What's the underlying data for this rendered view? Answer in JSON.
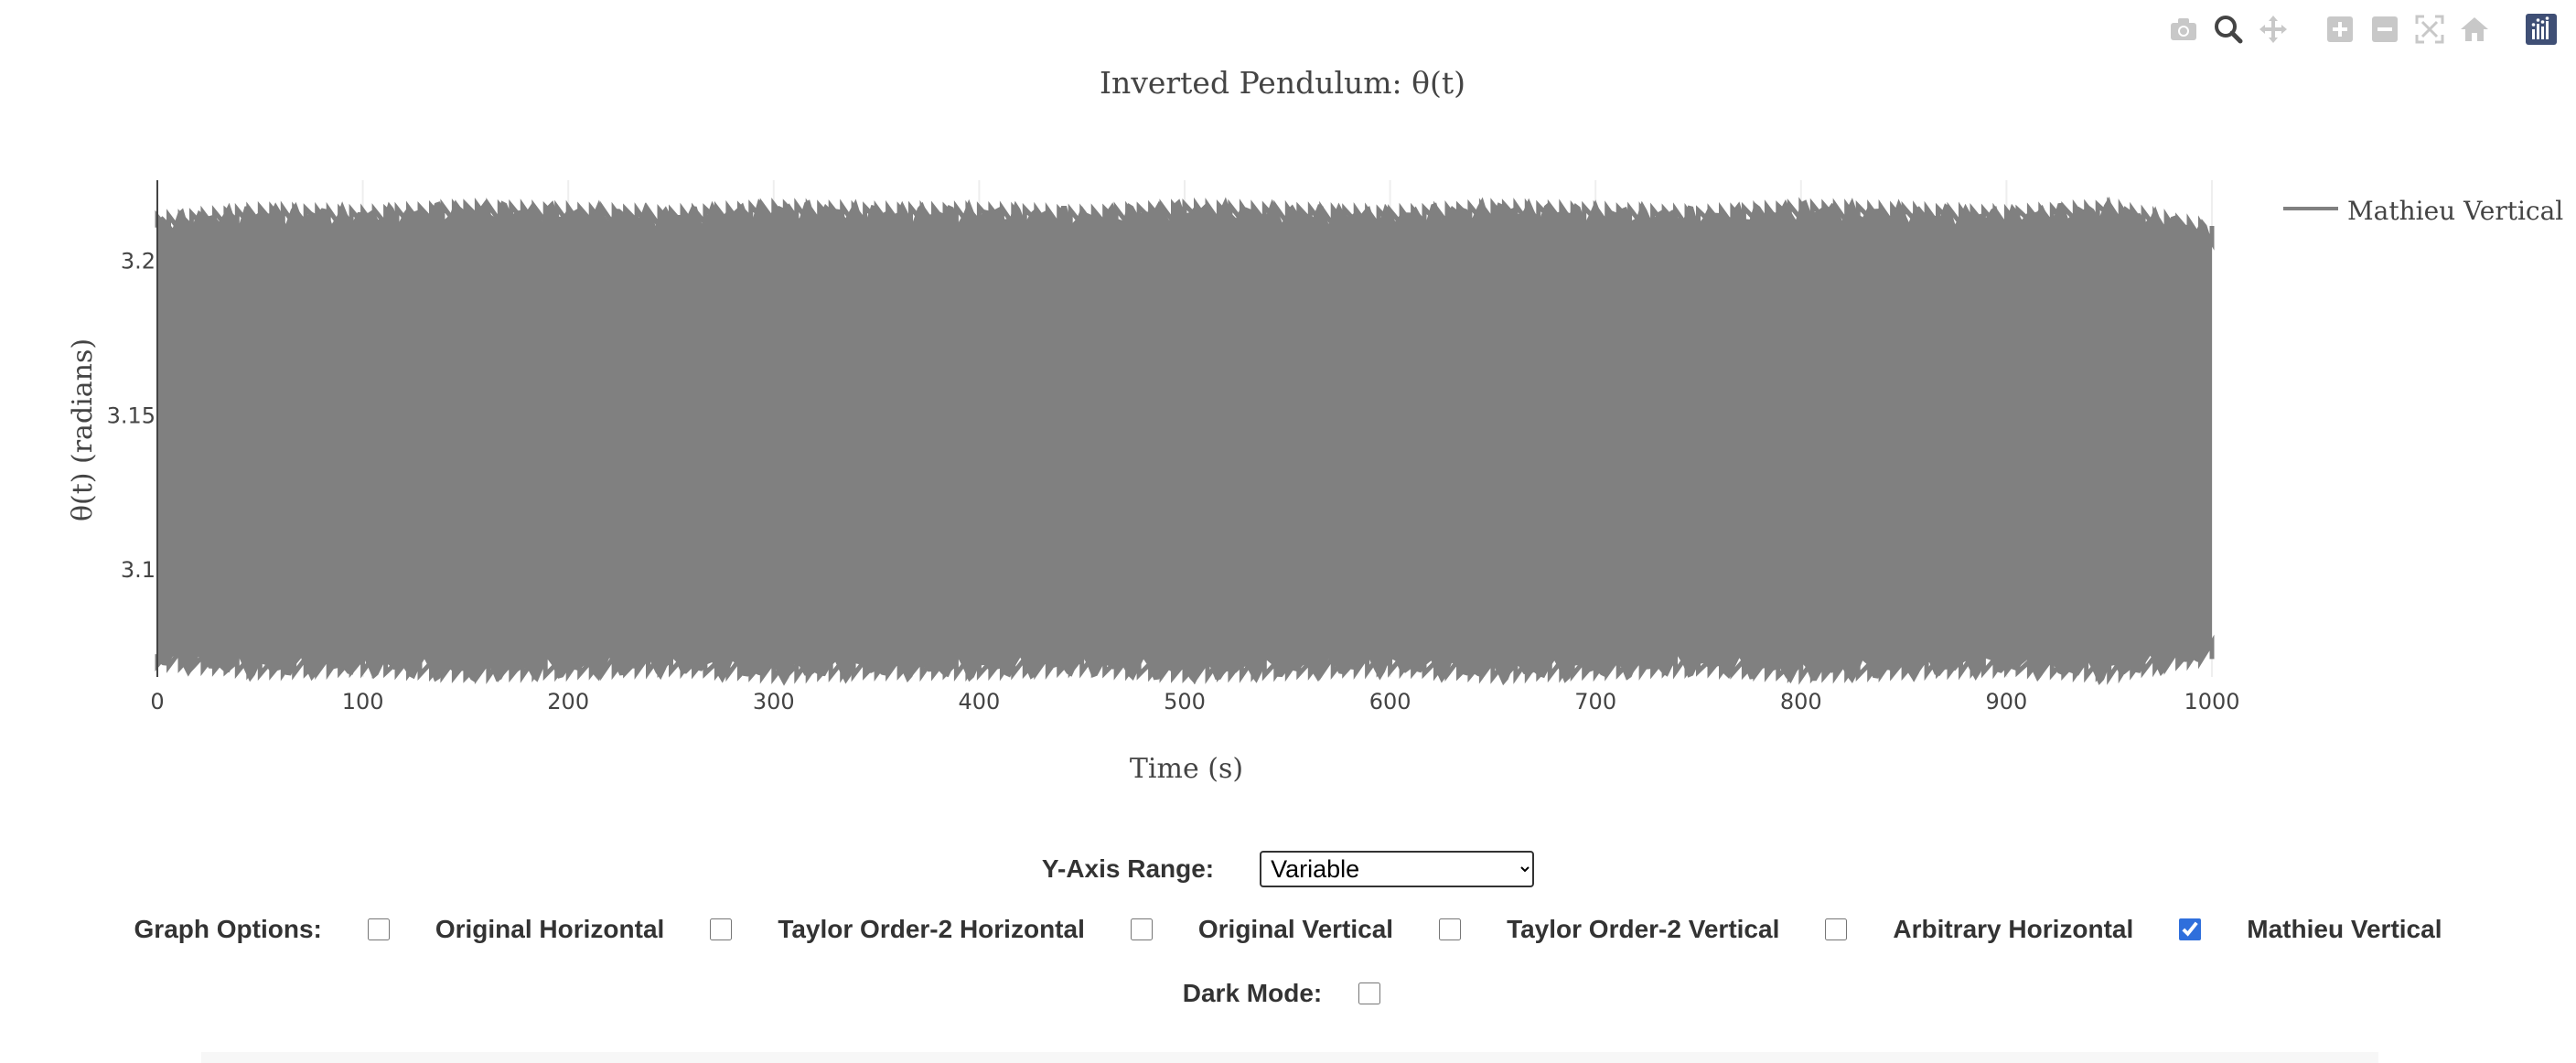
{
  "chart_data": {
    "type": "line",
    "title": "Inverted Pendulum: θ(t)",
    "xlabel": "Time (s)",
    "ylabel": "θ(t) (radians)",
    "xlim": [
      0,
      1000
    ],
    "ylim": [
      3.065,
      3.226
    ],
    "x_ticks": [
      0,
      100,
      200,
      300,
      400,
      500,
      600,
      700,
      800,
      900,
      1000
    ],
    "y_ticks": [
      3.1,
      3.15,
      3.2
    ],
    "x_tick_labels": [
      "0",
      "100",
      "200",
      "300",
      "400",
      "500",
      "600",
      "700",
      "800",
      "900",
      "1000"
    ],
    "y_tick_labels": [
      "3.1",
      "3.15",
      "3.2"
    ],
    "grid": true,
    "legend_position": "top-right",
    "series": [
      {
        "name": "Mathieu Vertical",
        "color": "#808080",
        "x_range": [
          0,
          1000
        ],
        "y_center": 3.142,
        "band_upper": 3.218,
        "band_lower": 3.066,
        "envelope_upper": [
          [
            0,
            3.213
          ],
          [
            50,
            3.216
          ],
          [
            100,
            3.215
          ],
          [
            150,
            3.217
          ],
          [
            200,
            3.216
          ],
          [
            250,
            3.215
          ],
          [
            300,
            3.217
          ],
          [
            350,
            3.216
          ],
          [
            400,
            3.216
          ],
          [
            450,
            3.215
          ],
          [
            500,
            3.217
          ],
          [
            550,
            3.216
          ],
          [
            600,
            3.215
          ],
          [
            650,
            3.217
          ],
          [
            700,
            3.216
          ],
          [
            750,
            3.215
          ],
          [
            800,
            3.217
          ],
          [
            850,
            3.216
          ],
          [
            900,
            3.215
          ],
          [
            950,
            3.217
          ],
          [
            1000,
            3.21
          ]
        ],
        "envelope_lower": [
          [
            0,
            3.07
          ],
          [
            50,
            3.067
          ],
          [
            100,
            3.068
          ],
          [
            150,
            3.066
          ],
          [
            200,
            3.067
          ],
          [
            250,
            3.068
          ],
          [
            300,
            3.066
          ],
          [
            350,
            3.067
          ],
          [
            400,
            3.067
          ],
          [
            450,
            3.068
          ],
          [
            500,
            3.066
          ],
          [
            550,
            3.067
          ],
          [
            600,
            3.068
          ],
          [
            650,
            3.066
          ],
          [
            700,
            3.067
          ],
          [
            750,
            3.068
          ],
          [
            800,
            3.066
          ],
          [
            850,
            3.067
          ],
          [
            900,
            3.068
          ],
          [
            950,
            3.066
          ],
          [
            1000,
            3.072
          ]
        ]
      }
    ]
  },
  "modebar": {
    "icons": [
      "camera-icon",
      "zoom-icon",
      "pan-icon",
      "zoom-in-icon",
      "zoom-out-icon",
      "autoscale-icon",
      "home-icon",
      "plotly-logo-icon"
    ],
    "active_icon": "zoom-icon"
  },
  "controls": {
    "y_axis_label": "Y-Axis Range:",
    "y_axis_selected": "Variable",
    "graph_options_label": "Graph Options:",
    "options": [
      {
        "label": "Original Horizontal",
        "checked": false
      },
      {
        "label": "Taylor Order-2 Horizontal",
        "checked": false
      },
      {
        "label": "Original Vertical",
        "checked": false
      },
      {
        "label": "Taylor Order-2 Vertical",
        "checked": false
      },
      {
        "label": "Arbitrary Horizontal",
        "checked": false
      },
      {
        "label": "Mathieu Vertical",
        "checked": true
      }
    ],
    "dark_mode_label": "Dark Mode:",
    "dark_mode_checked": false
  }
}
